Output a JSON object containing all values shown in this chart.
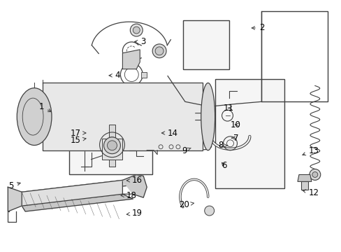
{
  "bg_color": "#ffffff",
  "fig_width": 4.89,
  "fig_height": 3.6,
  "dpi": 100,
  "lc": "#404040",
  "lc_light": "#888888",
  "label_fs": 8.5,
  "label_color": "#000000",
  "labels": {
    "1": [
      0.127,
      0.423,
      "right",
      0.155,
      0.448
    ],
    "2": [
      0.76,
      0.108,
      "left",
      0.73,
      0.108
    ],
    "3": [
      0.41,
      0.163,
      "left",
      0.385,
      0.163
    ],
    "4": [
      0.335,
      0.298,
      "left",
      0.31,
      0.298
    ],
    "5": [
      0.038,
      0.738,
      "right",
      0.065,
      0.725
    ],
    "6": [
      0.665,
      0.658,
      "right",
      0.645,
      0.638
    ],
    "7": [
      0.7,
      0.548,
      "right",
      0.678,
      0.548
    ],
    "8": [
      0.655,
      0.578,
      "right",
      0.668,
      0.578
    ],
    "9": [
      0.548,
      0.598,
      "right",
      0.565,
      0.585
    ],
    "10": [
      0.705,
      0.495,
      "right",
      0.688,
      0.495
    ],
    "11": [
      0.685,
      0.428,
      "right",
      0.668,
      0.428
    ],
    "12": [
      0.905,
      0.768,
      "left",
      0.88,
      0.755
    ],
    "13": [
      0.905,
      0.598,
      "left",
      0.88,
      0.62
    ],
    "14": [
      0.49,
      0.528,
      "left",
      0.465,
      0.528
    ],
    "15": [
      0.235,
      0.558,
      "right",
      0.258,
      0.548
    ],
    "16": [
      0.385,
      0.718,
      "left",
      0.362,
      0.718
    ],
    "17": [
      0.235,
      0.528,
      "right",
      0.258,
      0.528
    ],
    "18": [
      0.368,
      0.778,
      "left",
      0.345,
      0.778
    ],
    "19": [
      0.385,
      0.848,
      "left",
      0.362,
      0.855
    ],
    "20": [
      0.555,
      0.815,
      "right",
      0.57,
      0.808
    ]
  }
}
